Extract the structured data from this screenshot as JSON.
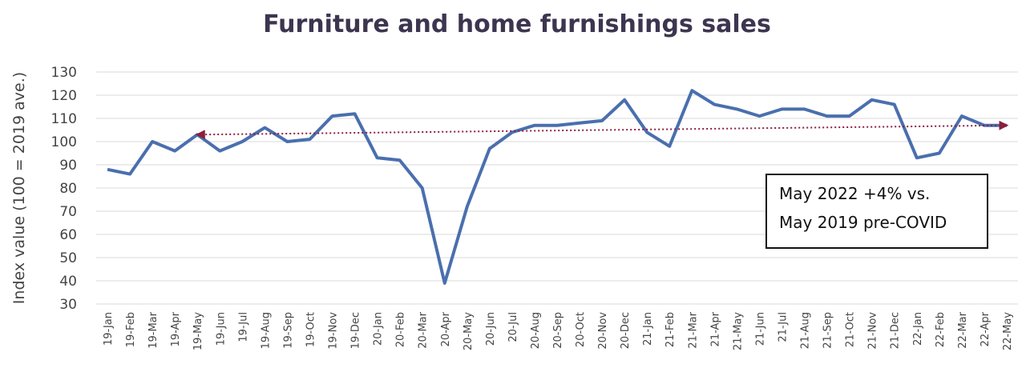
{
  "chart_data": {
    "type": "line",
    "title": "Furniture and home furnishings sales",
    "y_label": "Index value (100 = 2019 ave.)",
    "categories": [
      "19-Jan",
      "19-Feb",
      "19-Mar",
      "19-Apr",
      "19-May",
      "19-Jun",
      "19-Jul",
      "19-Aug",
      "19-Sep",
      "19-Oct",
      "19-Nov",
      "19-Dec",
      "20-Jan",
      "20-Feb",
      "20-Mar",
      "20-Apr",
      "20-May",
      "20-Jun",
      "20-Jul",
      "20-Aug",
      "20-Sep",
      "20-Oct",
      "20-Nov",
      "20-Dec",
      "21-Jan",
      "21-Feb",
      "21-Mar",
      "21-Apr",
      "21-May",
      "21-Jun",
      "21-Jul",
      "21-Aug",
      "21-Sep",
      "21-Oct",
      "21-Nov",
      "21-Dec",
      "22-Jan",
      "22-Feb",
      "22-Mar",
      "22-Apr",
      "22-May"
    ],
    "values": [
      88,
      86,
      100,
      96,
      103,
      96,
      100,
      106,
      100,
      101,
      111,
      112,
      93,
      92,
      80,
      39,
      72,
      97,
      104,
      107,
      107,
      108,
      109,
      118,
      104,
      98,
      122,
      116,
      114,
      111,
      114,
      114,
      111,
      111,
      118,
      116,
      93,
      95,
      111,
      107,
      107
    ],
    "color": "#4a6fae",
    "reference": {
      "x": [
        "19-May",
        "22-May"
      ],
      "values": [
        103,
        107
      ],
      "color": "#8b1f3f"
    },
    "annotation": [
      "May 2022 +4% vs.",
      "May 2019 pre-COVID"
    ],
    "ylim": [
      30,
      130
    ],
    "yticks": [
      30,
      40,
      50,
      60,
      70,
      80,
      90,
      100,
      110,
      120,
      130
    ],
    "grid": true
  }
}
